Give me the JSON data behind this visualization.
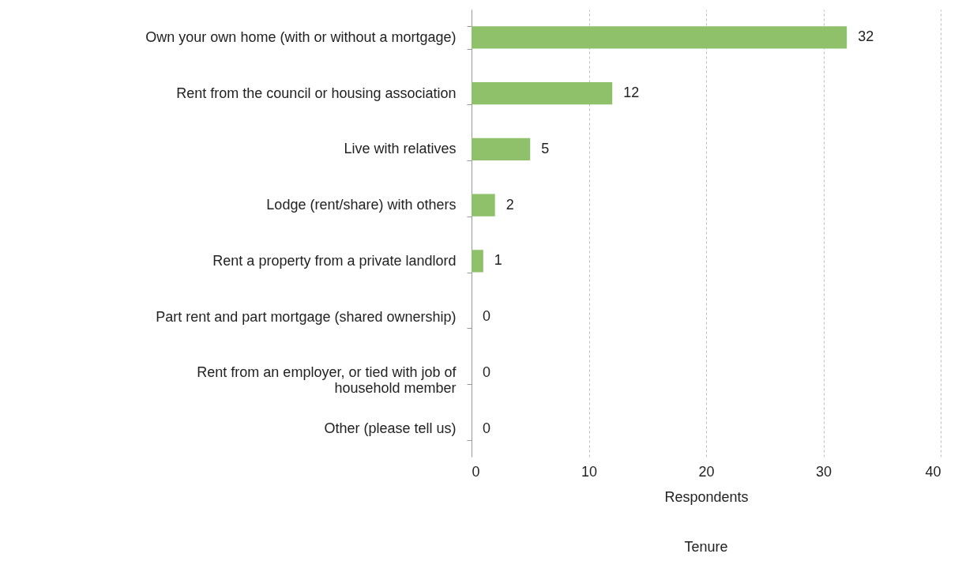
{
  "chart_data": {
    "type": "bar",
    "orientation": "horizontal",
    "title": "Tenure",
    "xlabel": "Respondents",
    "categories": [
      "Own your own home (with or without a mortgage)",
      "Rent from the council or housing association",
      "Live with relatives",
      "Lodge (rent/share) with others",
      "Rent a property from a private landlord",
      "Part rent and part mortgage (shared ownership)",
      "Rent from an employer, or tied with job of household member",
      "Other (please tell us)"
    ],
    "values": [
      32,
      12,
      5,
      2,
      1,
      0,
      0,
      0
    ],
    "color": "#8fc16a",
    "xlim": [
      0,
      40
    ],
    "xticks": [
      0,
      10,
      20,
      30,
      40
    ],
    "grid": "x",
    "data_labels": true
  }
}
